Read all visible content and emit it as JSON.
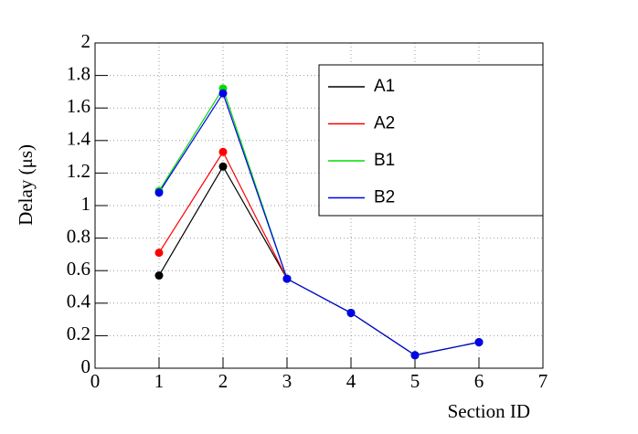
{
  "chart_data": {
    "type": "line",
    "xlabel": "Section ID",
    "ylabel": "Delay (μs)",
    "x": [
      1,
      2,
      3,
      4,
      5,
      6
    ],
    "series": [
      {
        "name": "A1",
        "color": "#000000",
        "values": [
          0.57,
          1.24,
          0.55,
          0.34,
          0.08,
          0.16
        ]
      },
      {
        "name": "A2",
        "color": "#ff0000",
        "values": [
          0.71,
          1.33,
          0.55,
          0.34,
          0.08,
          0.16
        ]
      },
      {
        "name": "B1",
        "color": "#00dd00",
        "values": [
          1.09,
          1.72,
          0.55,
          0.34,
          0.08,
          0.16
        ]
      },
      {
        "name": "B2",
        "color": "#0000ee",
        "values": [
          1.08,
          1.69,
          0.55,
          0.34,
          0.08,
          0.16
        ]
      }
    ],
    "xlim": [
      0,
      7
    ],
    "xticks": [
      0,
      1,
      2,
      3,
      4,
      5,
      6,
      7
    ],
    "ylim": [
      0,
      2
    ],
    "yticks": [
      0,
      0.2,
      0.4,
      0.6,
      0.8,
      1,
      1.2,
      1.4,
      1.6,
      1.8,
      2
    ],
    "grid": true,
    "legend": "top-right"
  }
}
